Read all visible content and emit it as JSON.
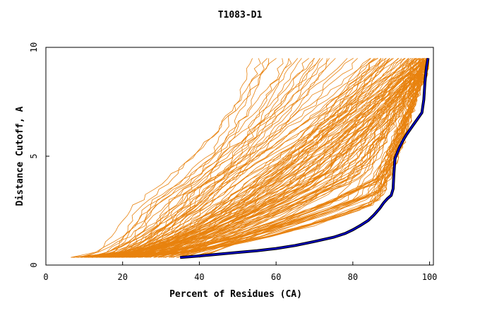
{
  "chart_data": {
    "type": "line",
    "title": "T1083-D1",
    "xlabel": "Percent of Residues (CA)",
    "ylabel": "Distance Cutoff, A",
    "xlim": [
      0,
      101
    ],
    "ylim": [
      0,
      10
    ],
    "x_ticks": [
      0,
      20,
      40,
      60,
      80,
      100
    ],
    "y_ticks": [
      0,
      5,
      10
    ],
    "grid": false,
    "legend": "none",
    "colors": {
      "models": "#e8820e",
      "highlight_outline": "#000000",
      "highlight": "#0000cc",
      "axes": "#000000"
    },
    "series_groups": [
      {
        "role": "models",
        "count": 150,
        "curve_params": [
          [
            6.5,
            30,
            72,
            0.55
          ],
          [
            8,
            34,
            78,
            0.6
          ],
          [
            9,
            22,
            60,
            0.5
          ],
          [
            10,
            40,
            80,
            0.65
          ],
          [
            10.5,
            36,
            86,
            0.6
          ],
          [
            11,
            28,
            70,
            0.55
          ],
          [
            11.5,
            44,
            90,
            0.7
          ],
          [
            12,
            26,
            64,
            0.5
          ],
          [
            12.5,
            48,
            94,
            0.72
          ],
          [
            13,
            30,
            74,
            0.55
          ],
          [
            13.5,
            52,
            96,
            0.75
          ],
          [
            14,
            38,
            82,
            0.62
          ],
          [
            14.5,
            24,
            58,
            0.5
          ],
          [
            15,
            56,
            98,
            0.78
          ],
          [
            15.5,
            42,
            88,
            0.66
          ],
          [
            16,
            34,
            76,
            0.58
          ],
          [
            16.5,
            60,
            99,
            0.8
          ],
          [
            17,
            46,
            92,
            0.7
          ],
          [
            17.5,
            28,
            66,
            0.52
          ],
          [
            18,
            64,
            99,
            0.82
          ],
          [
            18.5,
            50,
            95,
            0.72
          ],
          [
            19,
            38,
            84,
            0.62
          ],
          [
            19.5,
            66,
            100,
            0.84
          ],
          [
            20,
            54,
            97,
            0.75
          ],
          [
            20.5,
            32,
            72,
            0.55
          ],
          [
            21,
            70,
            100,
            0.86
          ],
          [
            21.5,
            58,
            98,
            0.78
          ],
          [
            22,
            42,
            88,
            0.66
          ],
          [
            22.5,
            72,
            100,
            0.88
          ],
          [
            23,
            62,
            99,
            0.8
          ],
          [
            10,
            60,
            96,
            0.6
          ],
          [
            11,
            66,
            98,
            0.62
          ],
          [
            12,
            70,
            99,
            0.65
          ],
          [
            13,
            74,
            100,
            0.68
          ],
          [
            14,
            62,
            95,
            0.6
          ],
          [
            15,
            78,
            100,
            0.7
          ],
          [
            16,
            68,
            98,
            0.64
          ],
          [
            17,
            80,
            100,
            0.72
          ],
          [
            18,
            72,
            99,
            0.66
          ],
          [
            19,
            82,
            100,
            0.74
          ],
          [
            10,
            76,
            96,
            0.55
          ],
          [
            11,
            78,
            97,
            0.55
          ],
          [
            12,
            80,
            98,
            0.56
          ],
          [
            13,
            82,
            99,
            0.58
          ],
          [
            14,
            84,
            99,
            0.6
          ],
          [
            15,
            86,
            99,
            0.62
          ],
          [
            16,
            84,
            100,
            0.6
          ],
          [
            17,
            86,
            100,
            0.62
          ],
          [
            18,
            88,
            100,
            0.64
          ],
          [
            19,
            86,
            99,
            0.6
          ],
          [
            20,
            84,
            98,
            0.6
          ],
          [
            21,
            86,
            99,
            0.62
          ],
          [
            22,
            88,
            100,
            0.64
          ],
          [
            23,
            85,
            99,
            0.6
          ],
          [
            24,
            87,
            100,
            0.62
          ],
          [
            12,
            84,
            96,
            0.5
          ],
          [
            13,
            85,
            97,
            0.52
          ],
          [
            14,
            86,
            98,
            0.54
          ],
          [
            15,
            85,
            98,
            0.52
          ],
          [
            16,
            86,
            99,
            0.54
          ],
          [
            17,
            87,
            99,
            0.56
          ],
          [
            18,
            86,
            98,
            0.54
          ],
          [
            19,
            87,
            99,
            0.56
          ],
          [
            20,
            86,
            99,
            0.55
          ],
          [
            21,
            87,
            100,
            0.57
          ],
          [
            11,
            50,
            92,
            0.6
          ],
          [
            12,
            54,
            94,
            0.62
          ],
          [
            13,
            58,
            96,
            0.64
          ],
          [
            14,
            52,
            93,
            0.6
          ],
          [
            15,
            56,
            95,
            0.62
          ],
          [
            16,
            48,
            90,
            0.58
          ],
          [
            17,
            60,
            97,
            0.66
          ],
          [
            18,
            54,
            94,
            0.62
          ],
          [
            19,
            62,
            98,
            0.68
          ],
          [
            20,
            58,
            96,
            0.64
          ],
          [
            24,
            74,
            100,
            0.86
          ],
          [
            25,
            66,
            99,
            0.8
          ],
          [
            25.5,
            46,
            90,
            0.68
          ],
          [
            26,
            76,
            100,
            0.88
          ],
          [
            26.5,
            68,
            100,
            0.82
          ],
          [
            27,
            50,
            93,
            0.7
          ],
          [
            27.5,
            78,
            100,
            0.9
          ],
          [
            28,
            70,
            100,
            0.84
          ],
          [
            28.5,
            54,
            95,
            0.72
          ],
          [
            29,
            80,
            100,
            0.9
          ],
          [
            29.5,
            72,
            100,
            0.85
          ],
          [
            30,
            58,
            97,
            0.74
          ],
          [
            30.5,
            82,
            100,
            0.92
          ],
          [
            31,
            74,
            100,
            0.86
          ],
          [
            32,
            62,
            98,
            0.76
          ],
          [
            32.5,
            84,
            100,
            0.92
          ],
          [
            33,
            76,
            100,
            0.88
          ],
          [
            34,
            66,
            99,
            0.8
          ],
          [
            35,
            85,
            100,
            0.93
          ],
          [
            36,
            78,
            100,
            0.9
          ],
          [
            9,
            46,
            86,
            0.5
          ],
          [
            10,
            50,
            88,
            0.52
          ],
          [
            11,
            44,
            84,
            0.5
          ],
          [
            12,
            48,
            87,
            0.52
          ],
          [
            13,
            52,
            89,
            0.54
          ],
          [
            14,
            46,
            85,
            0.5
          ],
          [
            15,
            50,
            88,
            0.52
          ],
          [
            16,
            54,
            90,
            0.55
          ],
          [
            17,
            48,
            86,
            0.5
          ],
          [
            18,
            52,
            89,
            0.54
          ],
          [
            20,
            86,
            100,
            0.7
          ],
          [
            22,
            87,
            100,
            0.72
          ],
          [
            24,
            88,
            100,
            0.74
          ],
          [
            26,
            87,
            100,
            0.72
          ],
          [
            28,
            88,
            100,
            0.76
          ],
          [
            30,
            86,
            100,
            0.74
          ],
          [
            32,
            87,
            100,
            0.76
          ],
          [
            34,
            88,
            100,
            0.78
          ],
          [
            36,
            86,
            100,
            0.76
          ],
          [
            38,
            88,
            100,
            0.8
          ],
          [
            22,
            76,
            99,
            0.72
          ],
          [
            24,
            78,
            100,
            0.74
          ],
          [
            26,
            80,
            100,
            0.76
          ],
          [
            28,
            74,
            99,
            0.72
          ],
          [
            30,
            79,
            100,
            0.76
          ],
          [
            32,
            81,
            100,
            0.8
          ],
          [
            34,
            77,
            100,
            0.76
          ],
          [
            36,
            82,
            100,
            0.82
          ],
          [
            38,
            80,
            100,
            0.8
          ],
          [
            40,
            84,
            100,
            0.84
          ],
          [
            6.5,
            26,
            56,
            0.3
          ],
          [
            7,
            28,
            62,
            0.32
          ],
          [
            8,
            24,
            54,
            0.3
          ],
          [
            9,
            30,
            64,
            0.34
          ],
          [
            8.5,
            26,
            58,
            0.3
          ],
          [
            10,
            34,
            70,
            0.4
          ],
          [
            11,
            32,
            66,
            0.38
          ],
          [
            12,
            36,
            72,
            0.42
          ],
          [
            13,
            34,
            68,
            0.4
          ],
          [
            14,
            38,
            74,
            0.44
          ],
          [
            15,
            62,
            96,
            0.64
          ],
          [
            16,
            64,
            97,
            0.66
          ],
          [
            17,
            66,
            98,
            0.68
          ],
          [
            18,
            68,
            99,
            0.7
          ],
          [
            19,
            70,
            100,
            0.72
          ],
          [
            20,
            64,
            97,
            0.66
          ],
          [
            21,
            68,
            99,
            0.7
          ],
          [
            22,
            70,
            100,
            0.72
          ],
          [
            23,
            72,
            100,
            0.74
          ],
          [
            24,
            70,
            100,
            0.72
          ]
        ]
      },
      {
        "role": "highlight",
        "count": 1,
        "points": [
          [
            35,
            0.35
          ],
          [
            40,
            0.42
          ],
          [
            45,
            0.5
          ],
          [
            50,
            0.58
          ],
          [
            55,
            0.66
          ],
          [
            60,
            0.76
          ],
          [
            65,
            0.9
          ],
          [
            70,
            1.08
          ],
          [
            75,
            1.28
          ],
          [
            78,
            1.45
          ],
          [
            80,
            1.62
          ],
          [
            82,
            1.82
          ],
          [
            84,
            2.05
          ],
          [
            85.5,
            2.3
          ],
          [
            87,
            2.6
          ],
          [
            88,
            2.85
          ],
          [
            89,
            3.05
          ],
          [
            90,
            3.2
          ],
          [
            90.5,
            3.5
          ],
          [
            90.7,
            4.2
          ],
          [
            91,
            4.9
          ],
          [
            92,
            5.35
          ],
          [
            93,
            5.7
          ],
          [
            94,
            6.0
          ],
          [
            95,
            6.25
          ],
          [
            96,
            6.5
          ],
          [
            97,
            6.75
          ],
          [
            98,
            7.0
          ],
          [
            98.5,
            7.6
          ],
          [
            98.8,
            8.4
          ],
          [
            99.2,
            9.1
          ],
          [
            99.6,
            9.5
          ]
        ]
      }
    ]
  }
}
